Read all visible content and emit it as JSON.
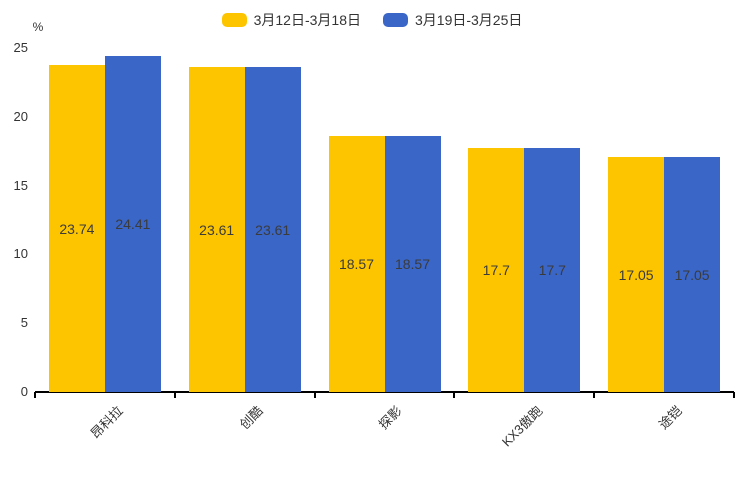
{
  "chart_data": {
    "type": "bar",
    "title": "",
    "ylabel": "%",
    "categories": [
      "昂科拉",
      "创酷",
      "探影",
      "KX3傲跑",
      "途铠"
    ],
    "series": [
      {
        "name": "3月12日-3月18日",
        "color": "#fdc500",
        "values": [
          23.74,
          23.61,
          18.57,
          17.7,
          17.05
        ]
      },
      {
        "name": "3月19日-3月25日",
        "color": "#3a66c8",
        "values": [
          24.41,
          23.61,
          18.57,
          17.7,
          17.05
        ]
      }
    ],
    "yticks": [
      0,
      5,
      10,
      15,
      20,
      25
    ],
    "ylim": [
      0,
      25
    ],
    "grid": false,
    "legend_position": "top",
    "value_label_position": "inside-center",
    "x_label_rotation_deg": -45,
    "text_color": "#333333",
    "axis_color": "#000000"
  }
}
